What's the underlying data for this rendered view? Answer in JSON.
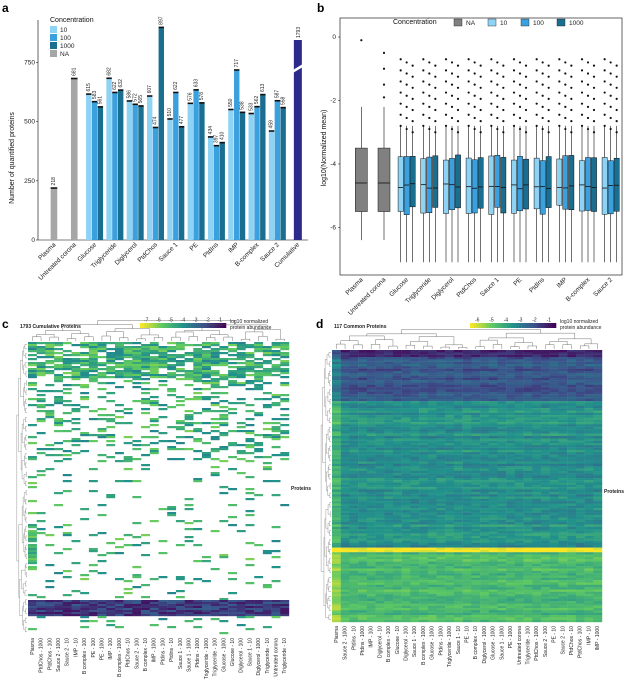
{
  "panels": {
    "a": {
      "letter": "a",
      "legend_title": "Concentration",
      "legend_items": [
        {
          "label": "10",
          "color": "#8fd3f4"
        },
        {
          "label": "100",
          "color": "#3ba0de"
        },
        {
          "label": "1000",
          "color": "#1a6e8f"
        },
        {
          "label": "NA",
          "color": "#a6a6a6"
        }
      ],
      "ylabel": "Number of quantified proteins"
    },
    "b": {
      "letter": "b",
      "legend_title": "Concentration",
      "legend_items": [
        {
          "label": "NA",
          "color": "#808080"
        },
        {
          "label": "10",
          "color": "#8fd3f4"
        },
        {
          "label": "100",
          "color": "#3ba0de"
        },
        {
          "label": "1000",
          "color": "#1a6e8f"
        }
      ],
      "ylabel": "log10(Normalized mean)"
    },
    "c": {
      "letter": "c",
      "title": "1793 Cumulative Proteins",
      "colorbar_label_1": "log10 normalized",
      "colorbar_label_2": "protein abundance",
      "colorbar_ticks": [
        "-7",
        "-6",
        "-5",
        "-4",
        "-3",
        "-2",
        "-1"
      ],
      "row_label": "Proteins",
      "columns": [
        "Plasma",
        "PtdChos - 1000",
        "PtdChos - 100",
        "Sauce 2 - 1000",
        "Sauce 2 - 10",
        "IMP - 10",
        "B complex - 100",
        "PE - 100",
        "PE - 1000",
        "IMP - 100",
        "B complex - 1000",
        "PtdChos - 10",
        "Sauce 2 - 100",
        "B complex - 10",
        "IMP - 1000",
        "Ptdins - 100",
        "Ptdins - 10",
        "Sauce 1 - 100",
        "Sauce 1 - 1000",
        "Ptdins - 1000",
        "Triglyceride - 1000",
        "Triglyceride - 100",
        "Glucose - 1000",
        "Glucose - 10",
        "Diglycerol - 100",
        "Sauce 1 - 10",
        "Diglycerol - 1000",
        "Triglyceride - 10",
        "Untreated corona",
        "Triglyceride - 10"
      ]
    },
    "d": {
      "letter": "d",
      "title": "117 Common Proteins",
      "colorbar_label_1": "log10 normalized",
      "colorbar_label_2": "protein abundance",
      "colorbar_ticks": [
        "-6",
        "-5",
        "-4",
        "-3",
        "-2",
        "-1"
      ],
      "row_label": "Proteins",
      "columns": [
        "Plasma",
        "Sauce 2 - 1000",
        "Ptdins - 10",
        "Ptdins - 1000",
        "IMP - 100",
        "Diglycerol - 10",
        "B complex - 100",
        "Glucose - 10",
        "Diglycerol - 100",
        "Sauce 1 - 100",
        "B complex - 1000",
        "Glucose - 1000",
        "Ptdins - 1000",
        "Triglyceride - 1000",
        "Sauce 1 - 10",
        "PE - 10",
        "B complex - 10",
        "Diglycerol - 1000",
        "Glucose - 1000",
        "Sauce 1 - 1000",
        "PE - 1000",
        "Untreated corona",
        "Triglyceride - 100",
        "PtdChos - 1000",
        "Sauce 2 - 100",
        "PE - 10",
        "Sauce 2 - 10",
        "PtdChos - 10",
        "PtdChos - 100",
        "IMP - 10",
        "IMP - 1000"
      ]
    }
  },
  "chart_data": [
    {
      "type": "bar",
      "panel": "a",
      "ylabel": "Number of quantified proteins",
      "ylim": [
        0,
        930
      ],
      "yticks": [
        0,
        250,
        500,
        750
      ],
      "categories": [
        "Plasma",
        "Untreated corona",
        "Glucose",
        "Triglyceride",
        "Diglycerol",
        "PtdChos",
        "Sauce 1",
        "PE",
        "PtdIns",
        "IMP",
        "B-complex",
        "Sauce 2",
        "Cumulative"
      ],
      "series": [
        {
          "name": "10",
          "color": "#8fd3f4",
          "values": [
            null,
            null,
            615,
            682,
            586,
            607,
            510,
            576,
            434,
            550,
            533,
            459,
            null
          ]
        },
        {
          "name": "100",
          "color": "#3ba0de",
          "values": [
            null,
            null,
            583,
            622,
            572,
            474,
            622,
            633,
            397,
            717,
            562,
            587,
            null
          ]
        },
        {
          "name": "1000",
          "color": "#1a6e8f",
          "values": [
            null,
            null,
            561,
            632,
            565,
            897,
            477,
            578,
            410,
            538,
            613,
            558,
            null
          ]
        },
        {
          "name": "NA",
          "color": "#a6a6a6",
          "values": [
            218,
            681,
            null,
            null,
            null,
            null,
            null,
            null,
            null,
            null,
            null,
            null,
            null
          ]
        }
      ],
      "cumulative": {
        "value": 1793,
        "color": "#2d2a8c"
      },
      "legend": "top-left"
    },
    {
      "type": "box",
      "panel": "b",
      "ylabel": "log10(Normalized mean)",
      "ylim": [
        -7.5,
        0.6
      ],
      "yticks": [
        0,
        -2,
        -4,
        -6
      ],
      "categories": [
        "Plasma",
        "Untreated corona",
        "Glucose",
        "Triglyceride",
        "Diglycerol",
        "PtdChos",
        "Sauce 1",
        "PE",
        "PtdIns",
        "IMP",
        "B-complex",
        "Sauce 2"
      ],
      "legend": "top"
    },
    {
      "type": "heatmap",
      "panel": "c",
      "title": "1793 Cumulative Proteins"
    },
    {
      "type": "heatmap",
      "panel": "d",
      "title": "117 Common Proteins"
    }
  ]
}
